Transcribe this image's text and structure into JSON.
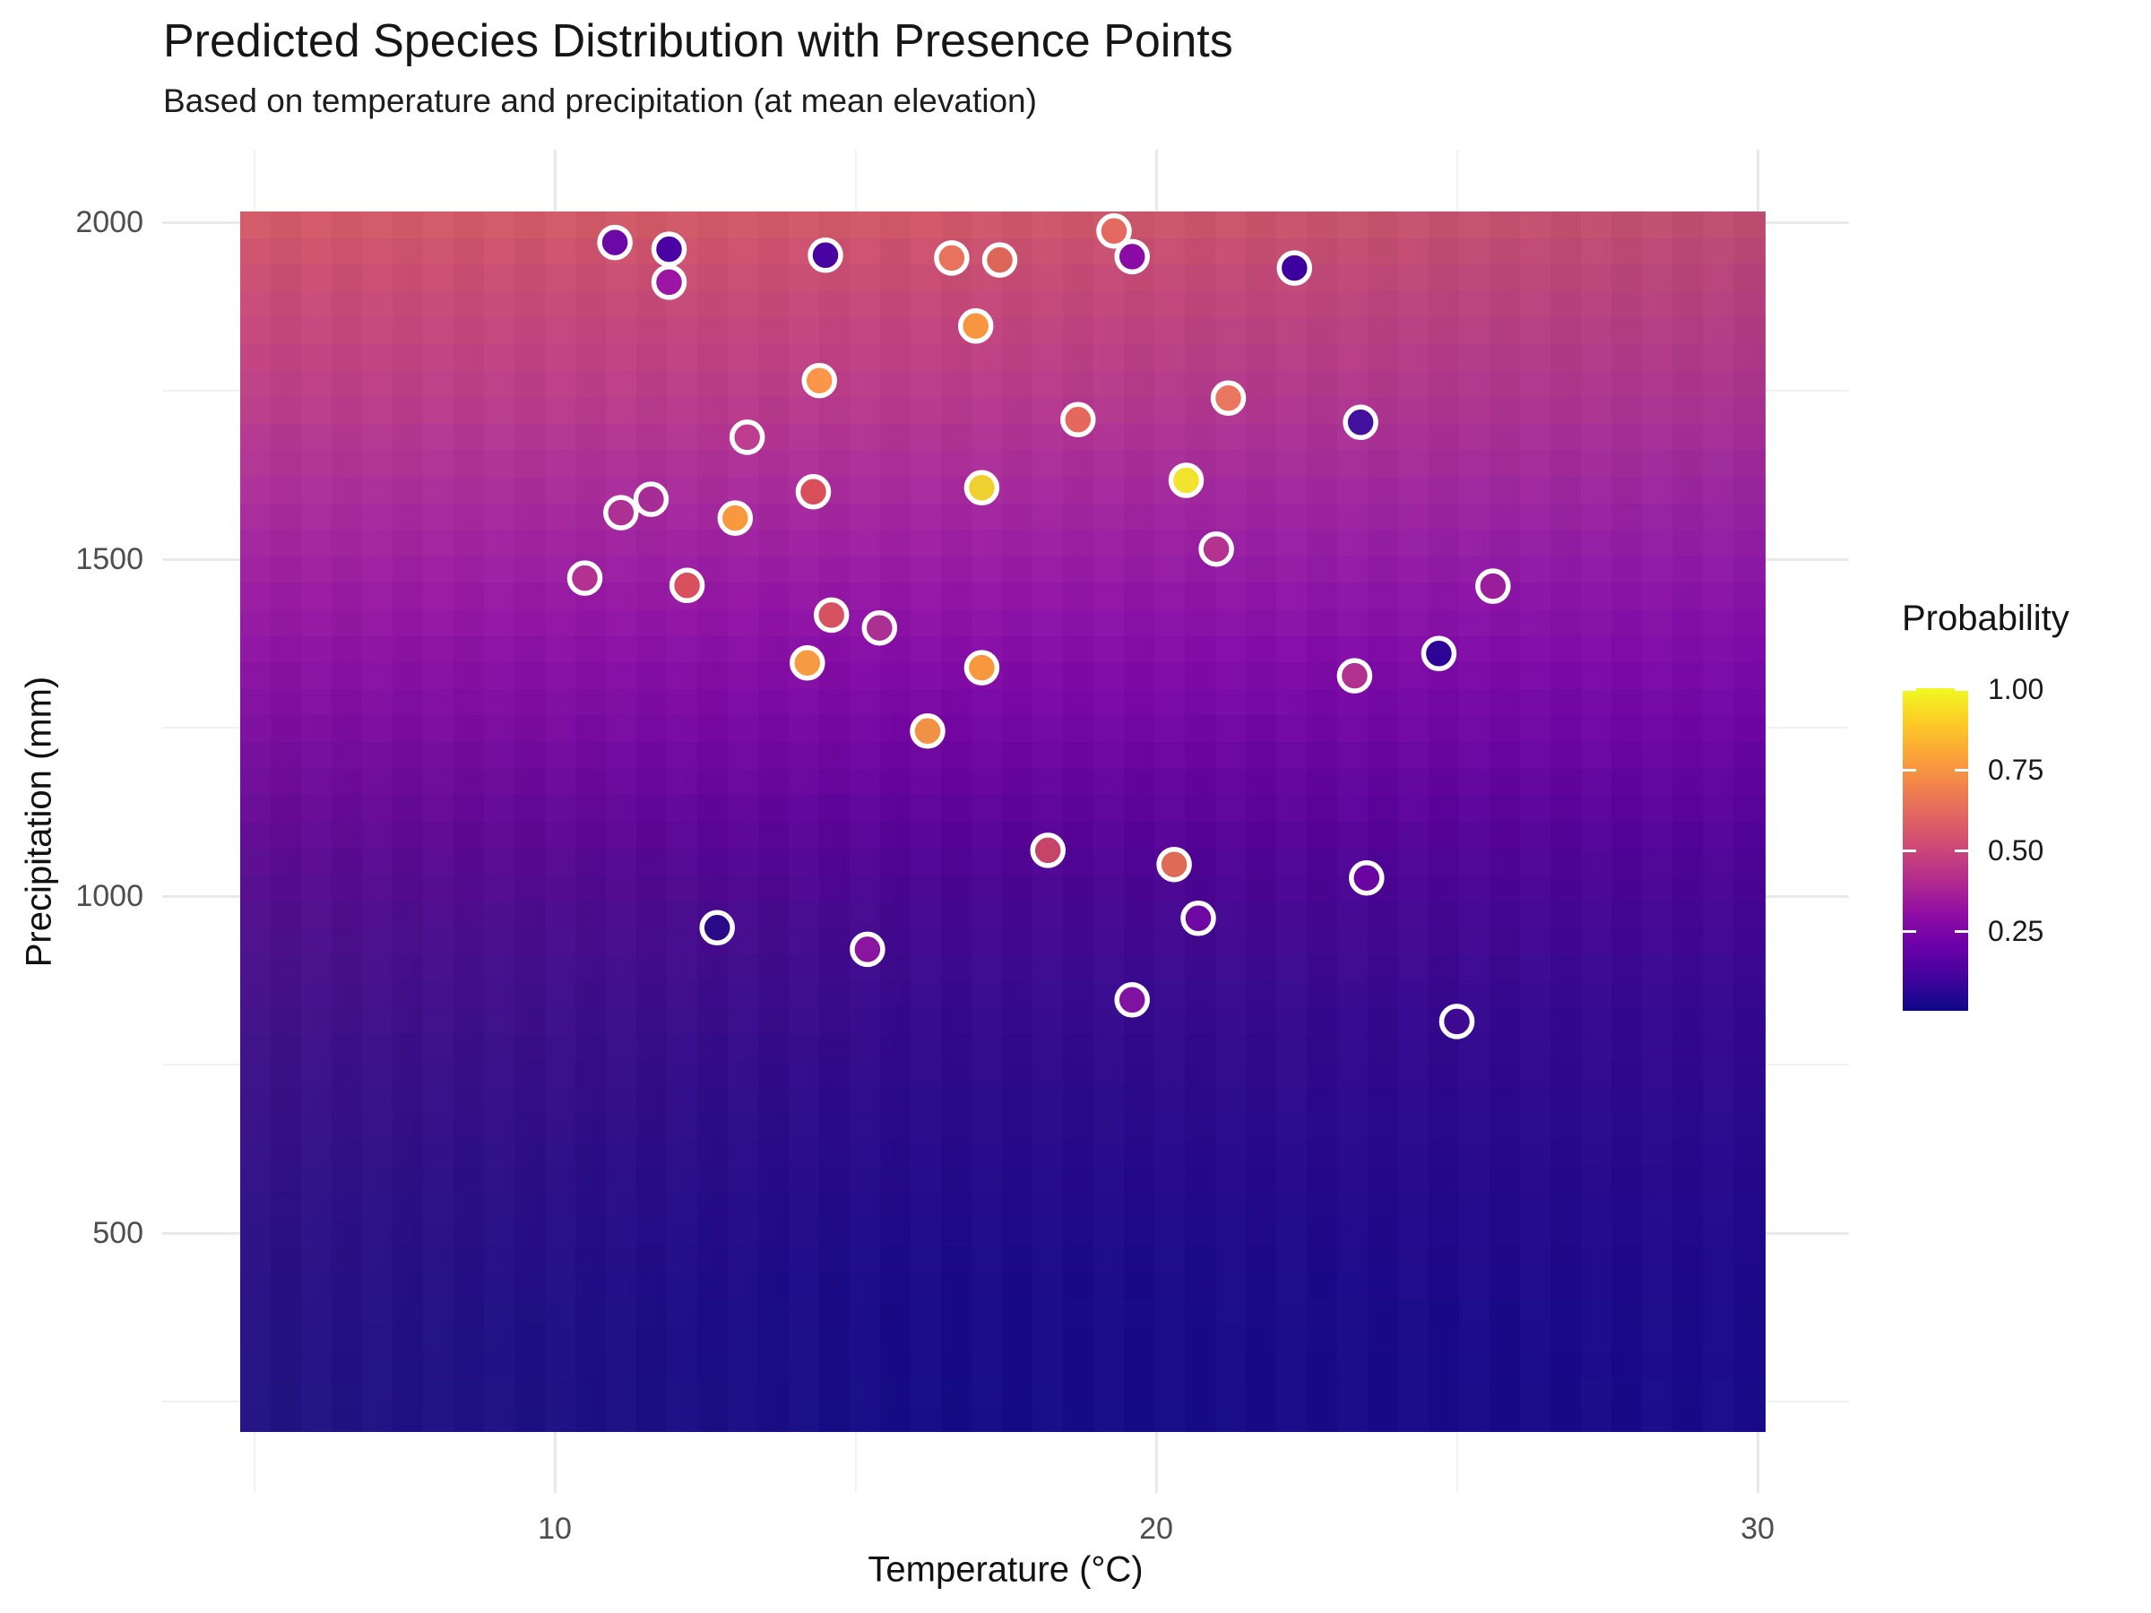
{
  "title": "Predicted Species Distribution with Presence Points",
  "subtitle": "Based on temperature and precipitation (at mean elevation)",
  "x_axis": {
    "label": "Temperature (°C)",
    "ticks": [
      {
        "label": "10",
        "value": 10
      },
      {
        "label": "20",
        "value": 20
      },
      {
        "label": "30",
        "value": 30
      }
    ],
    "minor_values": [
      5,
      15,
      25
    ]
  },
  "y_axis": {
    "label": "Precipitation (mm)",
    "ticks": [
      {
        "label": "2000",
        "value": 2000
      },
      {
        "label": "1500",
        "value": 1500
      },
      {
        "label": "1000",
        "value": 1000
      },
      {
        "label": "500",
        "value": 500
      }
    ],
    "minor_values": [
      1750,
      1250,
      750,
      250
    ]
  },
  "legend": {
    "title": "Probability",
    "ticks": [
      {
        "label": "1.00",
        "value": 1.0
      },
      {
        "label": "0.75",
        "value": 0.75
      },
      {
        "label": "0.50",
        "value": 0.5
      },
      {
        "label": "0.25",
        "value": 0.25
      }
    ],
    "colormap_name": "plasma-reversed-vertical",
    "colormap_stops": [
      "#f0f921",
      "#fcce25",
      "#fca636",
      "#f2844b",
      "#e16462",
      "#cc4778",
      "#b12a90",
      "#8f0da4",
      "#6a00a8",
      "#41049d",
      "#0d0887"
    ]
  },
  "chart_data": {
    "type": "heatmap",
    "title": "Predicted Species Distribution with Presence Points",
    "subtitle": "Based on temperature and precipitation (at mean elevation)",
    "xlabel": "Temperature (°C)",
    "ylabel": "Precipitation (mm)",
    "x_range": [
      4.8,
      30.1
    ],
    "y_range": [
      205,
      2016
    ],
    "xlim_panel": [
      3.5,
      31.5
    ],
    "ylim_panel": [
      110,
      2108
    ],
    "grid": true,
    "legend_position": "right",
    "raster_rows": 46,
    "raster_description": "Predicted probability surface: increases with precipitation, decreases slightly with temperature; plasma colormap (dark blue = 0, yellow = 1).",
    "raster_gradient": [
      {
        "p": 2016,
        "color": "#d35b66"
      },
      {
        "p": 1950,
        "color": "#cc5070"
      },
      {
        "p": 1880,
        "color": "#c64879"
      },
      {
        "p": 1810,
        "color": "#c04183"
      },
      {
        "p": 1740,
        "color": "#b93a8c"
      },
      {
        "p": 1670,
        "color": "#b13295"
      },
      {
        "p": 1600,
        "color": "#a82a9d"
      },
      {
        "p": 1530,
        "color": "#9f21a3"
      },
      {
        "p": 1460,
        "color": "#9617a7"
      },
      {
        "p": 1390,
        "color": "#8c0fa8"
      },
      {
        "p": 1320,
        "color": "#8109a7"
      },
      {
        "p": 1250,
        "color": "#7506a4"
      },
      {
        "p": 1180,
        "color": "#68049f"
      },
      {
        "p": 1110,
        "color": "#5b0399"
      },
      {
        "p": 1040,
        "color": "#4f0494"
      },
      {
        "p": 970,
        "color": "#450790"
      },
      {
        "p": 900,
        "color": "#3d098e"
      },
      {
        "p": 830,
        "color": "#36098c"
      },
      {
        "p": 760,
        "color": "#30098b"
      },
      {
        "p": 650,
        "color": "#28098a"
      },
      {
        "p": 550,
        "color": "#210989"
      },
      {
        "p": 450,
        "color": "#1b0988"
      },
      {
        "p": 350,
        "color": "#170a87"
      },
      {
        "p": 205,
        "color": "#130b86"
      }
    ],
    "points_series_name": "Presence points",
    "points": [
      {
        "t": 11.0,
        "p": 1970,
        "prob": 0.22,
        "fill": "#6b09a6"
      },
      {
        "t": 11.9,
        "p": 1960,
        "prob": 0.11,
        "fill": "#4a02a2"
      },
      {
        "t": 11.9,
        "p": 1911,
        "prob": 0.32,
        "fill": "#9b16a2"
      },
      {
        "t": 14.5,
        "p": 1951,
        "prob": 0.12,
        "fill": "#4903a0"
      },
      {
        "t": 16.6,
        "p": 1947,
        "prob": 0.63,
        "fill": "#e8735c"
      },
      {
        "t": 17.4,
        "p": 1944,
        "prob": 0.59,
        "fill": "#dd6658"
      },
      {
        "t": 19.3,
        "p": 1987,
        "prob": 0.61,
        "fill": "#e4695e"
      },
      {
        "t": 19.6,
        "p": 1949,
        "prob": 0.29,
        "fill": "#8a0ca4"
      },
      {
        "t": 22.3,
        "p": 1932,
        "prob": 0.09,
        "fill": "#3f00a0"
      },
      {
        "t": 17.0,
        "p": 1846,
        "prob": 0.76,
        "fill": "#f89540"
      },
      {
        "t": 14.4,
        "p": 1765,
        "prob": 0.76,
        "fill": "#f9964a"
      },
      {
        "t": 18.7,
        "p": 1707,
        "prob": 0.61,
        "fill": "#e4695c"
      },
      {
        "t": 21.2,
        "p": 1739,
        "prob": 0.64,
        "fill": "#e9765e"
      },
      {
        "t": 23.4,
        "p": 1703,
        "prob": 0.1,
        "fill": "#42129e"
      },
      {
        "t": 13.2,
        "p": 1681,
        "prob": 0.43,
        "fill": "#bd3d8e"
      },
      {
        "t": 11.6,
        "p": 1589,
        "prob": 0.37,
        "fill": "#a62c96"
      },
      {
        "t": 11.1,
        "p": 1569,
        "prob": 0.39,
        "fill": "#ad3193"
      },
      {
        "t": 13.0,
        "p": 1561,
        "prob": 0.77,
        "fill": "#f8993f"
      },
      {
        "t": 14.3,
        "p": 1600,
        "prob": 0.55,
        "fill": "#d84f59"
      },
      {
        "t": 17.1,
        "p": 1606,
        "prob": 0.91,
        "fill": "#eed12f"
      },
      {
        "t": 20.5,
        "p": 1617,
        "prob": 0.96,
        "fill": "#f2e32f"
      },
      {
        "t": 21.0,
        "p": 1515,
        "prob": 0.41,
        "fill": "#b53390"
      },
      {
        "t": 10.5,
        "p": 1472,
        "prob": 0.4,
        "fill": "#b23191"
      },
      {
        "t": 12.2,
        "p": 1461,
        "prob": 0.54,
        "fill": "#d8505e"
      },
      {
        "t": 14.6,
        "p": 1417,
        "prob": 0.53,
        "fill": "#d5525f"
      },
      {
        "t": 15.4,
        "p": 1398,
        "prob": 0.38,
        "fill": "#ab3092"
      },
      {
        "t": 14.2,
        "p": 1346,
        "prob": 0.78,
        "fill": "#f79b43"
      },
      {
        "t": 17.1,
        "p": 1339,
        "prob": 0.77,
        "fill": "#f7983f"
      },
      {
        "t": 16.2,
        "p": 1245,
        "prob": 0.73,
        "fill": "#f09145"
      },
      {
        "t": 23.3,
        "p": 1327,
        "prob": 0.4,
        "fill": "#b0318f"
      },
      {
        "t": 24.7,
        "p": 1360,
        "prob": 0.05,
        "fill": "#2d0596"
      },
      {
        "t": 25.6,
        "p": 1460,
        "prob": 0.33,
        "fill": "#9a1e9c"
      },
      {
        "t": 18.2,
        "p": 1068,
        "prob": 0.48,
        "fill": "#c64467"
      },
      {
        "t": 12.7,
        "p": 953,
        "prob": 0.03,
        "fill": "#2a0a87"
      },
      {
        "t": 15.2,
        "p": 921,
        "prob": 0.3,
        "fill": "#8a15a0"
      },
      {
        "t": 20.3,
        "p": 1047,
        "prob": 0.6,
        "fill": "#dd6b56"
      },
      {
        "t": 20.7,
        "p": 967,
        "prob": 0.21,
        "fill": "#6f08a3"
      },
      {
        "t": 23.5,
        "p": 1027,
        "prob": 0.2,
        "fill": "#6a05a2"
      },
      {
        "t": 19.6,
        "p": 846,
        "prob": 0.26,
        "fill": "#8013a2"
      },
      {
        "t": 25.0,
        "p": 814,
        "prob": 0.08,
        "fill": "#3f0a92"
      }
    ]
  },
  "colors": {
    "background": "#ffffff",
    "grid_major": "#e9e9e9",
    "grid_minor": "#f2f2f2",
    "tick_text": "#4d4d4d",
    "point_stroke": "#ffffff"
  }
}
